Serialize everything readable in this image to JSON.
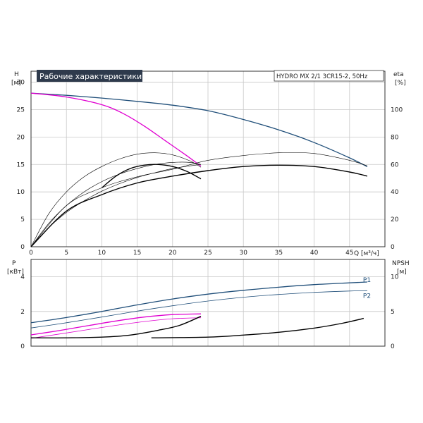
{
  "chart_data": [
    {
      "type": "line",
      "title": "Рабочие характеристики",
      "subtitle": "HYDRO MX 2/1 3CR15-2, 50Hz",
      "xlabel": "Q [м³/ч]",
      "ylabel_left": "H",
      "ylabel_left_unit": "[м]",
      "ylabel_right": "eta",
      "ylabel_right_unit": "[%]",
      "xlim": [
        0,
        50
      ],
      "ylim_left": [
        0,
        32
      ],
      "ylim_right": [
        0,
        128
      ],
      "x_ticks": [
        "0",
        "5",
        "10",
        "15",
        "20",
        "25",
        "30",
        "35",
        "40",
        "45"
      ],
      "y_left_ticks": [
        "0",
        "5",
        "10",
        "15",
        "20",
        "25",
        "30"
      ],
      "y_right_ticks": [
        "0",
        "20",
        "40",
        "60",
        "80",
        "100"
      ],
      "grid": true,
      "series": [
        {
          "name": "",
          "axis": "left",
          "color": "#1f4e79",
          "width": 1.3,
          "x": [
            0,
            5,
            10,
            15,
            20,
            25,
            30,
            35,
            40,
            45,
            47.5
          ],
          "y": [
            28,
            27.6,
            27.1,
            26.5,
            25.8,
            24.8,
            23.2,
            21.3,
            19,
            16.2,
            14.6
          ]
        },
        {
          "name": "",
          "axis": "left",
          "color": "#e000d0",
          "width": 1.3,
          "x": [
            0,
            5,
            10,
            13,
            16,
            19,
            22,
            24
          ],
          "y": [
            28,
            27.3,
            25.9,
            24.3,
            22,
            19.3,
            16.6,
            14.7
          ]
        },
        {
          "name": "",
          "axis": "right",
          "color": "#000000",
          "width": 1.4,
          "x": [
            10,
            12,
            14,
            16,
            18,
            20,
            22,
            24
          ],
          "y": [
            43,
            51.5,
            57,
            59.5,
            60,
            58.5,
            55,
            49.5
          ]
        },
        {
          "name": "",
          "axis": "right",
          "color": "#000000",
          "width": 1.4,
          "x": [
            0,
            5,
            10,
            15,
            20,
            25,
            30,
            35,
            40,
            45,
            47.5
          ],
          "y": [
            0,
            26,
            38,
            46.5,
            51.5,
            55.5,
            58.5,
            59.5,
            58.5,
            54.5,
            51.5
          ]
        },
        {
          "name": "",
          "axis": "right",
          "color": "#000000",
          "width": 0.6,
          "x": [
            0,
            2.5,
            5,
            7.5,
            10,
            12.5,
            15,
            17.5,
            20,
            22.5,
            24
          ],
          "y": [
            0,
            24,
            40,
            51,
            58.5,
            64,
            67.5,
            68.5,
            67,
            62.5,
            58
          ]
        },
        {
          "name": "",
          "axis": "right",
          "color": "#000000",
          "width": 0.6,
          "x": [
            0,
            2.5,
            5,
            7.5,
            10,
            12.5,
            15,
            17.5,
            20,
            22.5,
            24
          ],
          "y": [
            0,
            17,
            30,
            40,
            47.5,
            53,
            57,
            60,
            61.5,
            61.5,
            60
          ]
        },
        {
          "name": "",
          "axis": "right",
          "color": "#000000",
          "width": 0.6,
          "x": [
            0,
            2.5,
            5,
            7.5,
            10,
            12.5,
            15,
            17.5,
            20,
            22.5,
            24
          ],
          "y": [
            0,
            14,
            25,
            33.5,
            40.5,
            46,
            50.5,
            54,
            57,
            59,
            60
          ]
        },
        {
          "name": "",
          "axis": "right",
          "color": "#000000",
          "width": 0.6,
          "x": [
            0,
            5,
            10,
            15,
            20,
            25,
            30,
            35,
            40,
            45,
            47.5
          ],
          "y": [
            0,
            30,
            43,
            51,
            56.5,
            63,
            66.5,
            68.5,
            68,
            63,
            59
          ]
        }
      ]
    },
    {
      "type": "line",
      "xlim": [
        0,
        50
      ],
      "ylim_left": [
        0,
        5
      ],
      "ylim_right": [
        0,
        12.5
      ],
      "ylabel_left": "P",
      "ylabel_left_unit": "[кВт]",
      "ylabel_right": "NPSH",
      "ylabel_right_unit": "[м]",
      "y_left_ticks": [
        "0",
        "2",
        "4"
      ],
      "y_right_ticks": [
        "0",
        "5",
        "10"
      ],
      "grid": true,
      "series": [
        {
          "name": "P1",
          "label_visible": true,
          "axis": "left",
          "color": "#1f4e79",
          "width": 1.3,
          "x": [
            0,
            5,
            10,
            15,
            20,
            25,
            30,
            35,
            40,
            45,
            47.5
          ],
          "y": [
            1.35,
            1.65,
            2.0,
            2.38,
            2.72,
            3.0,
            3.22,
            3.4,
            3.55,
            3.65,
            3.7
          ]
        },
        {
          "name": "P2",
          "label_visible": true,
          "axis": "left",
          "color": "#1f4e79",
          "width": 0.8,
          "x": [
            0,
            5,
            10,
            15,
            20,
            25,
            30,
            35,
            40,
            45,
            47.5
          ],
          "y": [
            1.05,
            1.35,
            1.68,
            2.02,
            2.33,
            2.6,
            2.82,
            2.98,
            3.1,
            3.18,
            3.2
          ]
        },
        {
          "name": "",
          "axis": "left",
          "color": "#e000d0",
          "width": 1.3,
          "x": [
            0,
            4,
            8,
            12,
            16,
            20,
            24
          ],
          "y": [
            0.65,
            0.9,
            1.18,
            1.45,
            1.68,
            1.82,
            1.86
          ]
        },
        {
          "name": "",
          "axis": "left",
          "color": "#e000d0",
          "width": 0.8,
          "x": [
            0,
            4,
            8,
            12,
            16,
            20,
            24
          ],
          "y": [
            0.45,
            0.7,
            0.95,
            1.2,
            1.42,
            1.58,
            1.64
          ]
        },
        {
          "name": "",
          "axis": "right",
          "color": "#000000",
          "width": 1.4,
          "x": [
            0,
            5,
            10,
            14,
            18,
            21,
            24
          ],
          "y": [
            1.2,
            1.2,
            1.3,
            1.6,
            2.3,
            3.0,
            4.3
          ]
        },
        {
          "name": "",
          "axis": "right",
          "color": "#000000",
          "width": 1.4,
          "x": [
            17,
            25,
            30,
            35,
            40,
            44,
            47
          ],
          "y": [
            1.2,
            1.3,
            1.6,
            2.0,
            2.6,
            3.3,
            4.0
          ]
        }
      ]
    }
  ]
}
